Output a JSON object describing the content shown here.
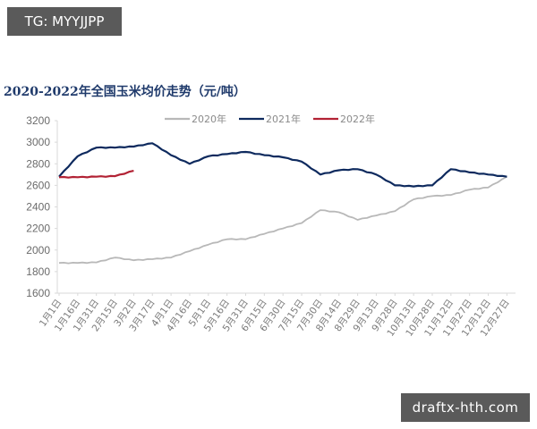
{
  "watermarks": {
    "top_left": "TG: MYYJJPP",
    "bottom_right": "draftx-hth.com"
  },
  "chart_data": {
    "type": "line",
    "title": "2020-2022年全国玉米均价走势（元/吨）",
    "xlabel": "",
    "ylabel": "",
    "ylim": [
      1600,
      3200
    ],
    "yticks": [
      1600,
      1800,
      2000,
      2200,
      2400,
      2600,
      2800,
      3000,
      3200
    ],
    "grid": false,
    "legend_position": "top",
    "categories": [
      "1月1日",
      "1月16日",
      "1月31日",
      "2月15日",
      "3月2日",
      "3月17日",
      "4月1日",
      "4月16日",
      "5月1日",
      "5月16日",
      "5月31日",
      "6月15日",
      "6月30日",
      "7月15日",
      "7月30日",
      "8月14日",
      "8月29日",
      "9月13日",
      "9月28日",
      "10月13日",
      "10月28日",
      "11月12日",
      "11月27日",
      "12月12日",
      "12月27日"
    ],
    "series": [
      {
        "name": "2020年",
        "color": "#b8b8b8",
        "values": [
          1880,
          1880,
          1885,
          1930,
          1905,
          1915,
          1930,
          1990,
          2050,
          2100,
          2100,
          2150,
          2200,
          2250,
          2370,
          2350,
          2280,
          2320,
          2360,
          2470,
          2500,
          2510,
          2560,
          2580,
          2680
        ]
      },
      {
        "name": "2021年",
        "color": "#0e2a5e",
        "values": [
          2680,
          2870,
          2950,
          2950,
          2960,
          2990,
          2880,
          2800,
          2870,
          2890,
          2910,
          2880,
          2860,
          2820,
          2700,
          2740,
          2750,
          2700,
          2600,
          2590,
          2600,
          2750,
          2720,
          2700,
          2680
        ]
      },
      {
        "name": "2022年",
        "color": "#b22234",
        "values": [
          2675,
          2675,
          2680,
          2685,
          2735
        ]
      }
    ]
  }
}
